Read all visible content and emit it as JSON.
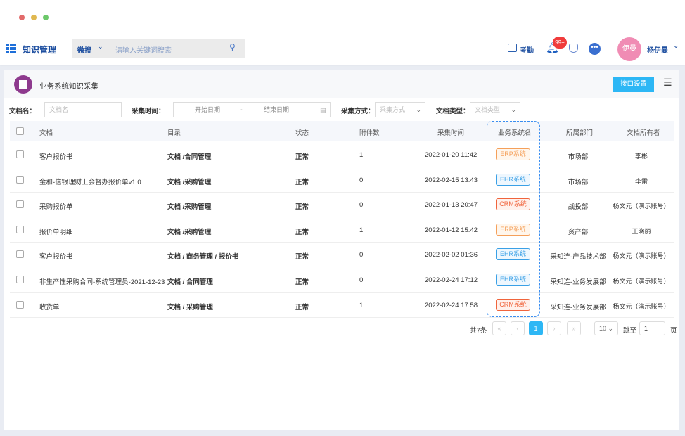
{
  "window": {
    "controls": [
      "close",
      "minimize",
      "maximize"
    ]
  },
  "topbar": {
    "app_title": "知识管理",
    "search_scope": "微搜",
    "search_placeholder": "请输入关键词搜索",
    "attendance_label": "考勤",
    "notification_badge": "99+",
    "user_avatar_text": "伊曼",
    "user_name": "杨伊曼"
  },
  "page": {
    "title": "业务系统知识采集",
    "settings_button": "接口设置"
  },
  "filters": {
    "doc_name_label": "文档名：",
    "doc_name_placeholder": "文档名",
    "time_label": "采集时间：",
    "start_placeholder": "开始日期",
    "range_sep": "~",
    "end_placeholder": "结束日期",
    "method_label": "采集方式：",
    "method_placeholder": "采集方式",
    "type_label": "文档类型：",
    "type_placeholder": "文档类型"
  },
  "table": {
    "headers": [
      "文档",
      "目录",
      "状态",
      "附件数",
      "采集时间",
      "业务系统名",
      "所属部门",
      "文档所有者"
    ],
    "rows": [
      {
        "doc": "客户报价书",
        "dir": "文档 /合同管理",
        "status": "正常",
        "attachments": "1",
        "time": "2022-01-20 11:42",
        "system": "ERP系统",
        "dept": "市场部",
        "owner": "李彬"
      },
      {
        "doc": "金和-信银理财上会督办报价单v1.0",
        "dir": "文档 /采购管理",
        "status": "正常",
        "attachments": "0",
        "time": "2022-02-15 13:43",
        "system": "EHR系统",
        "dept": "市场部",
        "owner": "李雷"
      },
      {
        "doc": "采购报价单",
        "dir": "文档 /采购管理",
        "status": "正常",
        "attachments": "0",
        "time": "2022-01-13 20:47",
        "system": "CRM系统",
        "dept": "战投部",
        "owner": "杨文元（演示账号）"
      },
      {
        "doc": "报价单明细",
        "dir": "文档 /采购管理",
        "status": "正常",
        "attachments": "1",
        "time": "2022-01-12 15:42",
        "system": "ERP系统",
        "dept": "资产部",
        "owner": "王晓丽"
      },
      {
        "doc": "客户报价书",
        "dir": "文档 / 商务管理 / 报价书",
        "status": "正常",
        "attachments": "0",
        "time": "2022-02-02 01:36",
        "system": "EHR系统",
        "dept": "采知连-产品技术部",
        "owner": "杨文元（演示账号）"
      },
      {
        "doc": "非生产性采购合同-系统管理员-2021-12-23",
        "dir": "文档 / 合同管理",
        "status": "正常",
        "attachments": "0",
        "time": "2022-02-24 17:12",
        "system": "EHR系统",
        "dept": "采知连-业务发展部",
        "owner": "杨文元（演示账号）"
      },
      {
        "doc": "收货单",
        "dir": "文档 / 采购管理",
        "status": "正常",
        "attachments": "1",
        "time": "2022-02-24 17:58",
        "system": "CRM系统",
        "dept": "采知连-业务发展部",
        "owner": "杨文元（演示账号）"
      }
    ]
  },
  "pagination": {
    "total": "共7条",
    "current_page": "1",
    "page_size": "10",
    "jump_label": "跳至",
    "jump_value": "1",
    "page_suffix": "页"
  },
  "colors": {
    "accent": "#1e9ff2",
    "primary_button": "#2db7f5",
    "ERP": "#f5a05a",
    "EHR": "#3aa0e6",
    "CRM": "#f0643c",
    "avatar": "#f08cb4",
    "logo": "#8e3a8e"
  }
}
